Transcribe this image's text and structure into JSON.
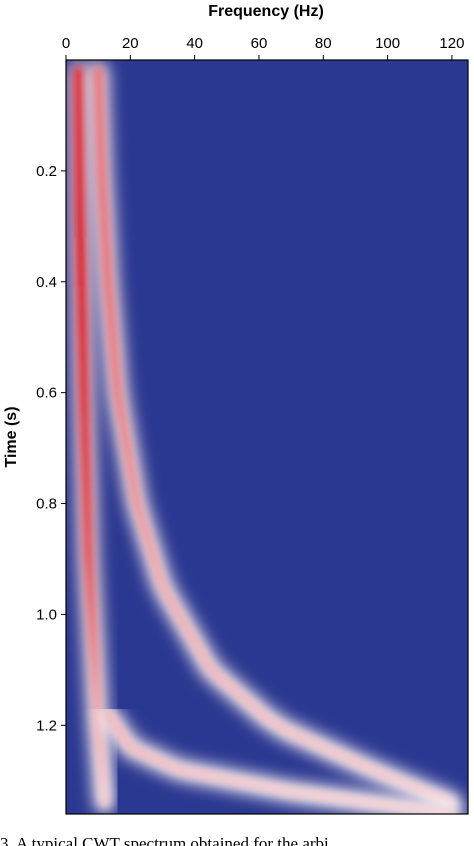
{
  "chart_data": {
    "type": "heatmap",
    "title": "",
    "xlabel": "Frequency (Hz)",
    "ylabel": "Time (s)",
    "xlim": [
      0,
      125
    ],
    "ylim": [
      0,
      1.36
    ],
    "x_ticks": [
      0,
      20,
      40,
      60,
      80,
      100,
      120
    ],
    "x_tick_labels": [
      "0",
      "20",
      "40",
      "60",
      "80",
      "100",
      "120"
    ],
    "y_ticks": [
      0.2,
      0.4,
      0.6,
      0.8,
      1.0,
      1.2
    ],
    "y_tick_labels": [
      "0.2",
      "0.4",
      "0.6",
      "0.8",
      "1.0",
      "1.2"
    ],
    "x_axis_position": "top",
    "y_axis_reversed": true,
    "colormap": {
      "low": "#2b3891",
      "mid": "#ffffff",
      "high": "#d8101a"
    },
    "ridges": [
      {
        "time_s": [
          0.02,
          0.3,
          0.6,
          0.9,
          1.2,
          1.34
        ],
        "frequency_hz": [
          4,
          4.5,
          5.5,
          7,
          10,
          12
        ],
        "peak_intensity": [
          1.0,
          1.0,
          0.9,
          0.75,
          0.35,
          0.2
        ]
      },
      {
        "time_s": [
          0.02,
          0.2,
          0.4,
          0.6,
          0.8,
          0.95,
          1.1,
          1.2,
          1.28,
          1.34
        ],
        "frequency_hz": [
          10,
          11,
          13,
          16,
          22,
          30,
          45,
          65,
          95,
          120
        ],
        "peak_intensity": [
          0.6,
          0.6,
          0.6,
          0.55,
          0.45,
          0.35,
          0.3,
          0.25,
          0.22,
          0.2
        ]
      },
      {
        "time_s": [
          1.18,
          1.24,
          1.28,
          1.32,
          1.36
        ],
        "frequency_hz": [
          13,
          20,
          35,
          70,
          120
        ],
        "peak_intensity": [
          0.3,
          0.28,
          0.25,
          0.2,
          0.18
        ]
      }
    ]
  },
  "caption": "3. A typical CWT spectrum obtained for the arbi"
}
